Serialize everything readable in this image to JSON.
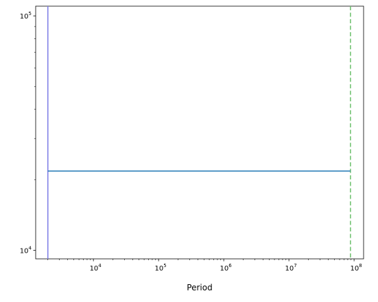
{
  "chart_data": {
    "type": "line",
    "title": "",
    "xlabel": "Period",
    "ylabel": "",
    "xscale": "log",
    "yscale": "log",
    "xlim": [
      1300,
      140000000
    ],
    "ylim": [
      9200,
      110000
    ],
    "grid": false,
    "x_ticks": [
      {
        "value": 10000,
        "base": "10",
        "exp": "4"
      },
      {
        "value": 100000,
        "base": "10",
        "exp": "5"
      },
      {
        "value": 1000000,
        "base": "10",
        "exp": "6"
      },
      {
        "value": 10000000,
        "base": "10",
        "exp": "7"
      },
      {
        "value": 100000000,
        "base": "10",
        "exp": "8"
      }
    ],
    "y_ticks": [
      {
        "value": 10000,
        "base": "10",
        "exp": "4"
      },
      {
        "value": 100000,
        "base": "10",
        "exp": "5"
      }
    ],
    "series": [
      {
        "x": [
          2000,
          88000000
        ],
        "y": [
          21800,
          21800
        ],
        "color": "#1f77b4",
        "style": "solid"
      }
    ],
    "vlines": [
      {
        "x": 2000,
        "color": "#7b7be6",
        "style": "solid"
      },
      {
        "x": 88000000,
        "color": "#6abf6a",
        "style": "dashed"
      }
    ]
  }
}
